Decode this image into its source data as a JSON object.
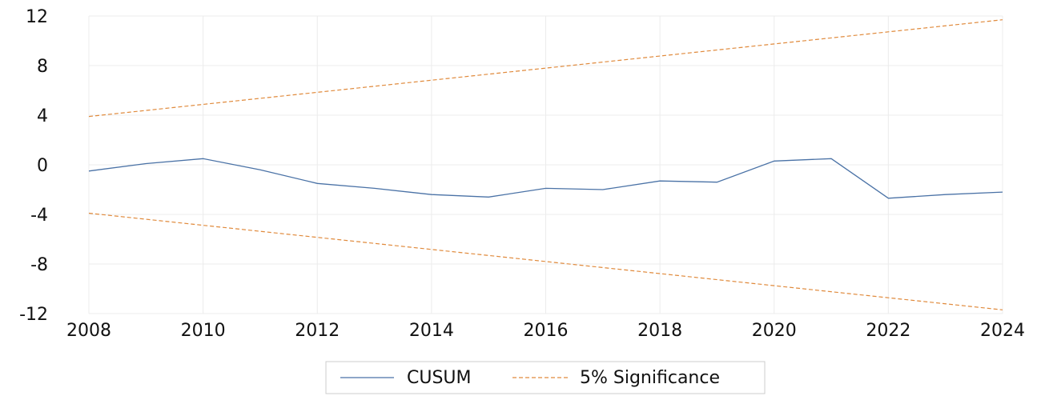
{
  "chart_data": {
    "type": "line",
    "title": "",
    "xlabel": "",
    "ylabel": "",
    "xlim": [
      2008,
      2024
    ],
    "ylim": [
      -12,
      12
    ],
    "x_ticks": [
      "2008",
      "2010",
      "2012",
      "2014",
      "2016",
      "2018",
      "2020",
      "2022",
      "2024"
    ],
    "y_ticks": [
      "12",
      "8",
      "4",
      "0",
      "-4",
      "-8",
      "-12"
    ],
    "grid": true,
    "legend_position": "bottom-center",
    "series": [
      {
        "name": "CUSUM",
        "style": "solid",
        "color": "#4a72a6",
        "x": [
          2008,
          2009,
          2010,
          2011,
          2012,
          2013,
          2014,
          2015,
          2016,
          2017,
          2018,
          2019,
          2020,
          2021,
          2022,
          2023,
          2024
        ],
        "y": [
          -0.5,
          0.1,
          0.5,
          -0.4,
          -1.5,
          -1.9,
          -2.4,
          -2.6,
          -1.9,
          -2.0,
          -1.3,
          -1.4,
          0.3,
          0.5,
          -2.7,
          -2.4,
          -2.2
        ]
      },
      {
        "name": "5% Significance",
        "style": "dashed",
        "color": "#e08a3c",
        "x": [
          2008,
          2024
        ],
        "y": [
          3.9,
          11.7
        ]
      },
      {
        "name": "5% Significance",
        "style": "dashed",
        "color": "#e08a3c",
        "show_in_legend": false,
        "x": [
          2008,
          2024
        ],
        "y": [
          -3.9,
          -11.7
        ]
      }
    ]
  }
}
